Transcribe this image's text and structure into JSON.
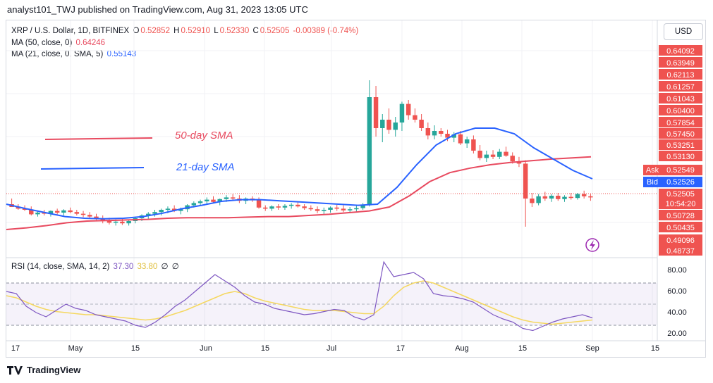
{
  "header": {
    "published": "analyst101_TWJ published on TradingView.com, Aug 31, 2023 13:05 UTC"
  },
  "toolbar": {
    "currency": "USD"
  },
  "legend": {
    "symbol": "XRP / U.S. Dollar, 1D, BITFINEX",
    "o_label": "O",
    "o": "0.52852",
    "h_label": "H",
    "h": "0.52910",
    "l_label": "L",
    "l": "0.52330",
    "c_label": "C",
    "c": "0.52505",
    "change": "-0.00389 (-0.74%)",
    "ma50_label": "MA (50, close, 0)",
    "ma50_value": "0.64246",
    "ma21_label": "MA (21, close, 0, SMA, 5)",
    "ma21_value": "0.55143",
    "rsi_label": "RSI (14, close, SMA, 14, 2)",
    "rsi_value": "37.30",
    "rsi_sma_value": "33.80",
    "rsi_extra1": "∅",
    "rsi_extra2": "∅"
  },
  "annotations": {
    "sma50": "50-day SMA",
    "sma21": "21-day SMA"
  },
  "price_axis": {
    "labels": [
      "0.64092",
      "0.63949",
      "0.62113",
      "0.61257",
      "0.61043",
      "0.60400",
      "0.57854",
      "0.57450",
      "0.53251",
      "0.53130",
      "0.50728",
      "0.50435",
      "0.49096",
      "0.48737"
    ],
    "ask_label": "Ask",
    "ask": "0.52549",
    "bid_label": "Bid",
    "bid": "0.52526",
    "last": "0.52505",
    "countdown": "10:54:20"
  },
  "rsi_axis": {
    "labels": [
      "80.00",
      "60.00",
      "40.00",
      "20.00"
    ]
  },
  "time_axis": {
    "labels": [
      "17",
      "May",
      "15",
      "Jun",
      "15",
      "Jul",
      "17",
      "Aug",
      "15",
      "Sep",
      "15"
    ]
  },
  "footer": {
    "brand": "TradingView"
  },
  "colors": {
    "up": "#26a69a",
    "down": "#ef5350",
    "ma50": "#e84a5f",
    "ma21": "#2962ff",
    "rsi": "#7e57c2",
    "rsi_sma": "#f5d860",
    "ask": "#ef5350",
    "bid": "#2962ff"
  },
  "chart_data": {
    "type": "candlestick",
    "title": "XRP / U.S. Dollar, 1D, BITFINEX",
    "y_axis": {
      "scale": "nonlinear (labels as printed)",
      "tick_labels": [
        "0.64092",
        "0.63949",
        "0.62113",
        "0.61257",
        "0.61043",
        "0.60400",
        "0.57854",
        "0.57450",
        "0.53251",
        "0.53130",
        "0.50728",
        "0.50435",
        "0.49096",
        "0.48737"
      ]
    },
    "x_axis": {
      "tick_labels": [
        "17",
        "May",
        "15",
        "Jun",
        "15",
        "Jul",
        "17",
        "Aug",
        "15",
        "Sep",
        "15"
      ]
    },
    "ohlc_shape": [
      [
        0.0,
        0.1,
        0.0,
        -0.05
      ],
      [
        -0.05,
        0.0,
        -0.1,
        -0.08
      ],
      [
        -0.08,
        -0.02,
        -0.12,
        -0.1
      ],
      [
        -0.1,
        -0.04,
        -0.2,
        -0.18
      ],
      [
        -0.18,
        -0.12,
        -0.22,
        -0.15
      ],
      [
        -0.15,
        -0.1,
        -0.2,
        -0.17
      ],
      [
        -0.17,
        -0.11,
        -0.22,
        -0.12
      ],
      [
        -0.12,
        -0.08,
        -0.18,
        -0.15
      ],
      [
        -0.15,
        -0.09,
        -0.2,
        -0.11
      ],
      [
        -0.11,
        -0.06,
        -0.16,
        -0.14
      ],
      [
        -0.14,
        -0.1,
        -0.2,
        -0.17
      ],
      [
        -0.17,
        -0.12,
        -0.23,
        -0.19
      ],
      [
        -0.19,
        -0.14,
        -0.25,
        -0.22
      ],
      [
        -0.22,
        -0.17,
        -0.28,
        -0.25
      ],
      [
        -0.25,
        -0.2,
        -0.34,
        -0.3
      ],
      [
        -0.3,
        -0.24,
        -0.36,
        -0.33
      ],
      [
        -0.33,
        -0.27,
        -0.38,
        -0.31
      ],
      [
        -0.31,
        -0.25,
        -0.37,
        -0.34
      ],
      [
        -0.34,
        -0.28,
        -0.38,
        -0.3
      ],
      [
        -0.3,
        -0.22,
        -0.34,
        -0.25
      ],
      [
        -0.25,
        -0.18,
        -0.3,
        -0.2
      ],
      [
        -0.2,
        -0.14,
        -0.26,
        -0.17
      ],
      [
        -0.17,
        -0.1,
        -0.22,
        -0.14
      ],
      [
        -0.14,
        -0.08,
        -0.2,
        -0.1
      ],
      [
        -0.1,
        -0.04,
        -0.16,
        -0.08
      ],
      [
        -0.08,
        -0.02,
        -0.14,
        -0.12
      ],
      [
        -0.12,
        -0.06,
        -0.18,
        -0.09
      ],
      [
        -0.09,
        0.0,
        -0.14,
        -0.02
      ],
      [
        -0.02,
        0.05,
        -0.06,
        0.02
      ],
      [
        0.02,
        0.08,
        -0.02,
        0.05
      ],
      [
        0.05,
        0.12,
        0.0,
        0.08
      ],
      [
        0.08,
        0.14,
        0.02,
        0.04
      ],
      [
        0.04,
        0.1,
        -0.02,
        0.09
      ],
      [
        0.09,
        0.16,
        0.04,
        0.12
      ],
      [
        0.12,
        0.18,
        0.06,
        0.1
      ],
      [
        0.1,
        0.16,
        0.02,
        0.06
      ],
      [
        0.06,
        0.12,
        0.0,
        0.1
      ],
      [
        0.1,
        0.14,
        0.04,
        0.07
      ],
      [
        0.07,
        0.12,
        -0.08,
        -0.06
      ],
      [
        -0.06,
        -0.02,
        -0.12,
        -0.08
      ],
      [
        -0.08,
        -0.02,
        -0.12,
        -0.04
      ],
      [
        -0.04,
        0.0,
        -0.1,
        -0.06
      ],
      [
        -0.06,
        0.0,
        -0.1,
        -0.03
      ],
      [
        -0.03,
        0.02,
        -0.08,
        -0.01
      ],
      [
        -0.01,
        0.04,
        -0.06,
        -0.04
      ],
      [
        -0.04,
        0.0,
        -0.1,
        -0.07
      ],
      [
        -0.07,
        -0.02,
        -0.12,
        -0.09
      ],
      [
        -0.09,
        -0.04,
        -0.16,
        -0.12
      ],
      [
        -0.12,
        -0.06,
        -0.18,
        -0.1
      ],
      [
        -0.1,
        -0.04,
        -0.15,
        -0.06
      ],
      [
        -0.06,
        -0.01,
        -0.12,
        -0.08
      ],
      [
        -0.08,
        -0.02,
        -0.14,
        -0.11
      ],
      [
        -0.11,
        -0.05,
        -0.15,
        -0.09
      ],
      [
        -0.09,
        -0.03,
        -0.14,
        -0.07
      ],
      [
        -0.07,
        0.02,
        -0.1,
        -0.02
      ],
      [
        -0.02,
        2.2,
        -0.04,
        1.9
      ],
      [
        1.9,
        2.1,
        1.2,
        1.35
      ],
      [
        1.35,
        1.6,
        1.1,
        1.5
      ],
      [
        1.5,
        1.7,
        1.25,
        1.32
      ],
      [
        1.32,
        1.55,
        1.2,
        1.45
      ],
      [
        1.45,
        1.82,
        1.3,
        1.78
      ],
      [
        1.78,
        1.85,
        1.5,
        1.58
      ],
      [
        1.58,
        1.7,
        1.45,
        1.5
      ],
      [
        1.5,
        1.6,
        1.3,
        1.35
      ],
      [
        1.35,
        1.45,
        1.15,
        1.22
      ],
      [
        1.22,
        1.4,
        1.15,
        1.3
      ],
      [
        1.3,
        1.35,
        1.2,
        1.25
      ],
      [
        1.25,
        1.32,
        1.12,
        1.18
      ],
      [
        1.18,
        1.28,
        1.1,
        1.24
      ],
      [
        1.24,
        1.3,
        1.05,
        1.08
      ],
      [
        1.08,
        1.2,
        1.0,
        1.15
      ],
      [
        1.15,
        1.22,
        0.9,
        0.95
      ],
      [
        0.95,
        1.05,
        0.78,
        0.82
      ],
      [
        0.82,
        0.95,
        0.75,
        0.88
      ],
      [
        0.88,
        0.96,
        0.8,
        0.84
      ],
      [
        0.84,
        0.98,
        0.8,
        0.93
      ],
      [
        0.93,
        1.02,
        0.84,
        0.86
      ],
      [
        0.86,
        0.92,
        0.72,
        0.76
      ],
      [
        0.76,
        0.84,
        0.66,
        0.72
      ],
      [
        0.72,
        0.78,
        -0.4,
        0.1
      ],
      [
        0.1,
        0.2,
        -0.05,
        0.02
      ],
      [
        0.02,
        0.18,
        -0.02,
        0.14
      ],
      [
        0.14,
        0.22,
        0.06,
        0.1
      ],
      [
        0.1,
        0.18,
        0.04,
        0.15
      ],
      [
        0.15,
        0.2,
        0.06,
        0.09
      ],
      [
        0.09,
        0.16,
        0.04,
        0.13
      ],
      [
        0.13,
        0.2,
        0.08,
        0.11
      ],
      [
        0.11,
        0.2,
        0.08,
        0.18
      ],
      [
        0.18,
        0.24,
        0.1,
        0.14
      ],
      [
        0.14,
        0.18,
        0.06,
        0.12
      ]
    ],
    "ma50_shape": [
      -0.45,
      -0.42,
      -0.38,
      -0.33,
      -0.3,
      -0.29,
      -0.28,
      -0.27,
      -0.25,
      -0.24,
      -0.24,
      -0.24,
      -0.23,
      -0.22,
      -0.22,
      -0.2,
      -0.18,
      -0.15,
      -0.12,
      -0.05,
      0.15,
      0.4,
      0.56,
      0.64,
      0.7,
      0.74,
      0.77,
      0.8,
      0.82,
      0.84
    ],
    "ma21_shape": [
      0.0,
      -0.08,
      -0.15,
      -0.22,
      -0.25,
      -0.26,
      -0.25,
      -0.22,
      -0.16,
      -0.08,
      -0.02,
      0.05,
      0.08,
      0.08,
      0.06,
      0.04,
      0.02,
      0.0,
      -0.02,
      0.0,
      0.3,
      0.7,
      1.05,
      1.25,
      1.35,
      1.35,
      1.25,
      1.0,
      0.8,
      0.6,
      0.45
    ],
    "rsi_data": {
      "tick_labels": [
        "80.00",
        "60.00",
        "40.00",
        "20.00"
      ],
      "bands": [
        70,
        50,
        30
      ],
      "rsi": [
        62,
        60,
        48,
        42,
        38,
        44,
        50,
        46,
        44,
        40,
        38,
        36,
        34,
        30,
        28,
        33,
        40,
        48,
        54,
        62,
        70,
        78,
        72,
        66,
        58,
        52,
        50,
        46,
        44,
        42,
        40,
        41,
        43,
        45,
        44,
        38,
        35,
        40,
        90,
        76,
        78,
        80,
        74,
        60,
        58,
        57,
        55,
        52,
        46,
        40,
        36,
        33,
        27,
        25,
        29,
        33,
        36,
        38,
        40,
        37
      ],
      "rsi_sma": [
        58,
        56,
        52,
        48,
        45,
        43,
        42,
        41,
        40,
        40,
        39,
        38,
        37,
        36,
        35,
        36,
        38,
        41,
        44,
        48,
        52,
        56,
        60,
        62,
        60,
        56,
        53,
        51,
        49,
        47,
        45,
        44,
        44,
        44,
        43,
        42,
        41,
        41,
        48,
        58,
        66,
        70,
        72,
        70,
        66,
        62,
        58,
        54,
        50,
        46,
        42,
        38,
        35,
        33,
        32,
        31,
        32,
        33,
        34,
        35
      ]
    }
  }
}
